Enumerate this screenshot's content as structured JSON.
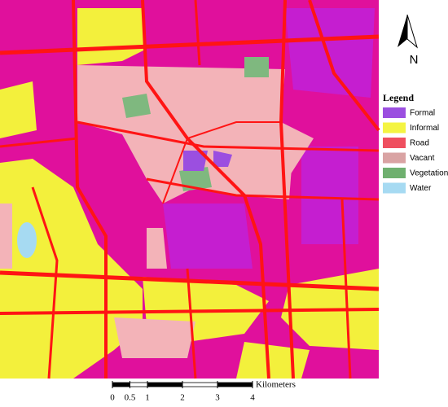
{
  "north_label": "N",
  "legend": {
    "title": "Legend",
    "items": [
      {
        "name": "Formal",
        "color": "#9b4fe0"
      },
      {
        "name": "Informal",
        "color": "#f4f442"
      },
      {
        "name": "Road",
        "color": "#ef4f5f"
      },
      {
        "name": "Vacant",
        "color": "#d9a3a3"
      },
      {
        "name": "Vegetation",
        "color": "#6fb06f"
      },
      {
        "name": "Water",
        "color": "#a6daf2"
      }
    ]
  },
  "scale_bar": {
    "unit": "Kilometers",
    "ticks": [
      0,
      0.5,
      1,
      2,
      3,
      4
    ]
  }
}
